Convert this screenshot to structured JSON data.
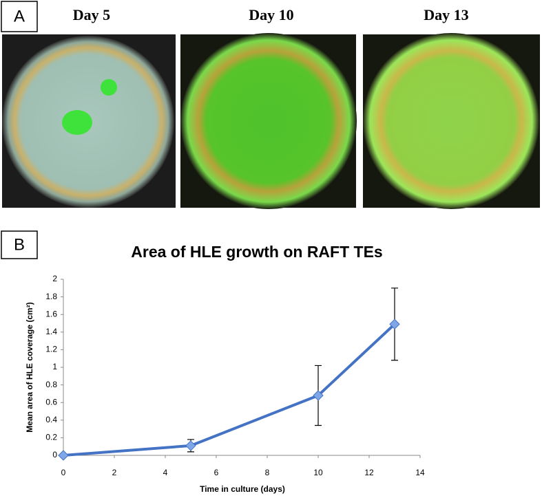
{
  "figure": {
    "panel_a_label": "A",
    "photos": [
      {
        "label": "Day 5"
      },
      {
        "label": "Day 10"
      },
      {
        "label": "Day 13"
      }
    ],
    "panel_b_label": "B"
  },
  "chart_data": {
    "type": "line",
    "title": "Area of HLE growth on RAFT TEs",
    "x_label": "Time in culture (days)",
    "y_label": "Mean area of HLE coverage (cm²)",
    "x": [
      0,
      5,
      10,
      13
    ],
    "values": [
      0,
      0.11,
      0.68,
      1.49
    ],
    "errors": [
      0,
      0.07,
      0.34,
      0.41
    ],
    "color": "#4472c4",
    "xlim": [
      0,
      14
    ],
    "xticks": [
      0,
      2,
      4,
      6,
      8,
      10,
      12,
      14
    ],
    "ylim": [
      0,
      2
    ],
    "yticks": [
      0,
      0.2,
      0.4,
      0.6,
      0.8,
      1,
      1.2,
      1.4,
      1.6,
      1.8,
      2
    ]
  }
}
